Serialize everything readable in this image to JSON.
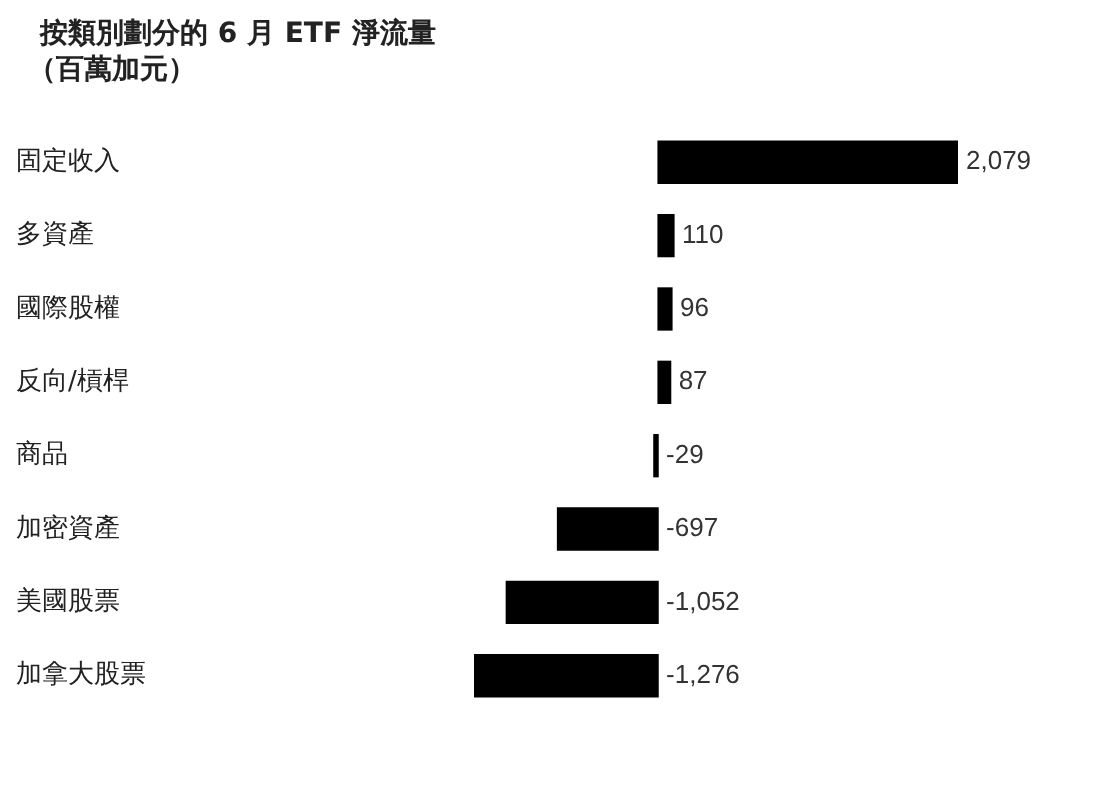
{
  "chart_data": {
    "type": "bar",
    "orientation": "horizontal",
    "title": "按類別劃分的 6 月 ETF 淨流量",
    "subtitle": "（百萬加元）",
    "categories": [
      "固定收入",
      "多資產",
      "國際股權",
      "反向/槓桿",
      "商品",
      "加密資產",
      "美國股票",
      "加拿大股票"
    ],
    "values": [
      2079,
      110,
      96,
      87,
      -29,
      -697,
      -1052,
      -1276
    ],
    "color": "#000000",
    "value_labels": [
      "2,079",
      "110",
      "96",
      "87",
      "-29",
      "-697",
      "-1,052",
      "-1,276"
    ],
    "legend": false
  }
}
